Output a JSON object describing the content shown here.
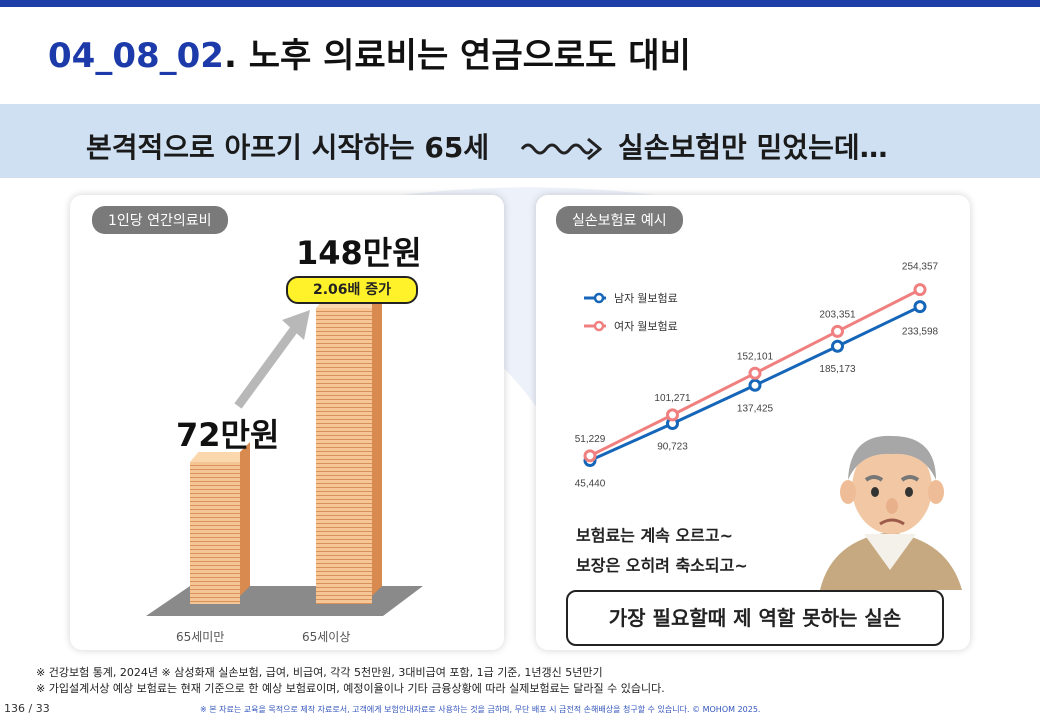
{
  "title": {
    "number": "04_08_02",
    "text": ". 노후 의료비는 연금으로도 대비"
  },
  "banner": {
    "left": "본격적으로 아프기 시작하는 65세",
    "right": "실손보험만 믿었는데…"
  },
  "left_card": {
    "pill": "1인당 연간의료비",
    "under65_amount": "72만원",
    "over65_amount": "148만원",
    "increase_tag": "2.06배 증가",
    "x_labels": [
      "65세미만",
      "65세이상"
    ]
  },
  "right_card": {
    "pill": "실손보험료 예시",
    "message_line1": "보험료는 계속 오르고~",
    "message_line2": "보장은 오히려 축소되고~",
    "box_text": "가장 필요할때 제 역할 못하는 실손"
  },
  "chart_data": {
    "type": "line",
    "x": [
      1,
      2,
      3,
      4,
      5
    ],
    "series": [
      {
        "name": "남자 월보험료",
        "color": "#1565b8",
        "values": [
          45440,
          90723,
          137425,
          185173,
          233598
        ],
        "labels": [
          "45,440",
          "90,723",
          "137,425",
          "185,173",
          "233,598"
        ]
      },
      {
        "name": "여자 월보험료",
        "color": "#f08080",
        "values": [
          51229,
          101271,
          152101,
          203351,
          254357
        ],
        "labels": [
          "51,229",
          "101,271",
          "152,101",
          "203,351",
          "254,357"
        ]
      }
    ],
    "legend_position": "top-left",
    "grid": false
  },
  "notes": {
    "line1": "※ 건강보험 통계, 2024년 ※ 삼성화재 실손보험, 급여, 비급여, 각각 5천만원, 3대비급여 포함, 1급 기준, 1년갱신 5년만기",
    "line2": "※ 가입설계서상 예상 보험료는 현재 기준으로 한 예상 보험료이며, 예정이율이나 기타 금융상황에 따라 실제보험료는 달라질 수 있습니다."
  },
  "page_number": "136 / 33",
  "footer": "※ 본 자료는 교육을 목적으로 제작 자료로서, 고객에게 보험안내자료로 사용하는 것을 금하며, 무단 배포 시 금전적 손해배상을 청구할 수 있습니다. © MOHOM 2025."
}
